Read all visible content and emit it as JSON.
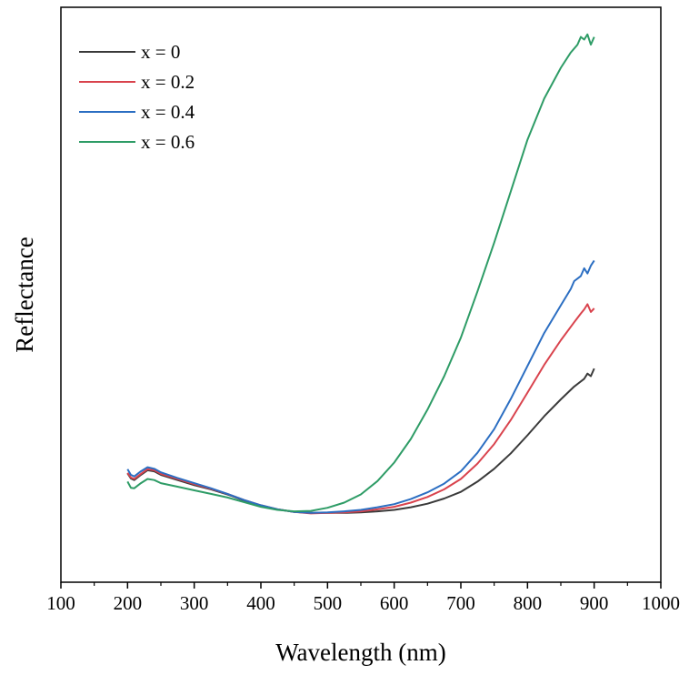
{
  "chart_data": {
    "type": "line",
    "title": "",
    "xlabel": "Wavelength (nm)",
    "ylabel": "Reflectance",
    "xlim": [
      100,
      1000
    ],
    "ylim": [
      0,
      1
    ],
    "xticks": [
      "100",
      "200",
      "300",
      "400",
      "500",
      "600",
      "700",
      "800",
      "900",
      "1000"
    ],
    "yticks_labeled": false,
    "grid": false,
    "legend_position": "top-left",
    "series": [
      {
        "name": "x = 0",
        "color": "#3a3a3a",
        "x": [
          200,
          205,
          210,
          220,
          230,
          240,
          250,
          275,
          300,
          325,
          350,
          375,
          400,
          425,
          450,
          475,
          500,
          525,
          550,
          575,
          600,
          625,
          650,
          675,
          700,
          725,
          750,
          775,
          800,
          825,
          850,
          870,
          885,
          890,
          895,
          900
        ],
        "y": [
          0.141,
          0.131,
          0.128,
          0.138,
          0.147,
          0.145,
          0.138,
          0.128,
          0.118,
          0.11,
          0.1,
          0.088,
          0.078,
          0.071,
          0.066,
          0.064,
          0.064,
          0.064,
          0.065,
          0.067,
          0.07,
          0.075,
          0.082,
          0.092,
          0.105,
          0.125,
          0.15,
          0.18,
          0.215,
          0.252,
          0.285,
          0.31,
          0.325,
          0.335,
          0.33,
          0.345
        ]
      },
      {
        "name": "x = 0.2",
        "color": "#d9434d",
        "x": [
          200,
          205,
          210,
          220,
          230,
          240,
          250,
          275,
          300,
          325,
          350,
          375,
          400,
          425,
          450,
          475,
          500,
          525,
          550,
          575,
          600,
          625,
          650,
          675,
          700,
          725,
          750,
          775,
          800,
          825,
          850,
          870,
          880,
          885,
          890,
          895,
          900
        ],
        "y": [
          0.142,
          0.133,
          0.13,
          0.14,
          0.149,
          0.147,
          0.14,
          0.13,
          0.12,
          0.111,
          0.101,
          0.089,
          0.079,
          0.071,
          0.066,
          0.063,
          0.064,
          0.065,
          0.067,
          0.071,
          0.076,
          0.084,
          0.095,
          0.11,
          0.13,
          0.16,
          0.198,
          0.245,
          0.298,
          0.352,
          0.4,
          0.435,
          0.452,
          0.46,
          0.47,
          0.455,
          0.462
        ]
      },
      {
        "name": "x = 0.4",
        "color": "#2b6ec2",
        "x": [
          200,
          205,
          210,
          220,
          230,
          240,
          250,
          275,
          300,
          325,
          350,
          375,
          400,
          425,
          450,
          475,
          500,
          525,
          550,
          575,
          600,
          625,
          650,
          675,
          700,
          725,
          750,
          775,
          800,
          825,
          850,
          865,
          870,
          880,
          885,
          890,
          895,
          900
        ],
        "y": [
          0.149,
          0.138,
          0.135,
          0.145,
          0.153,
          0.15,
          0.143,
          0.132,
          0.122,
          0.112,
          0.101,
          0.089,
          0.079,
          0.071,
          0.066,
          0.064,
          0.065,
          0.067,
          0.07,
          0.075,
          0.081,
          0.091,
          0.104,
          0.121,
          0.145,
          0.181,
          0.227,
          0.286,
          0.35,
          0.414,
          0.468,
          0.5,
          0.515,
          0.525,
          0.54,
          0.53,
          0.545,
          0.555
        ]
      },
      {
        "name": "x = 0.6",
        "color": "#2e9c66",
        "x": [
          200,
          205,
          210,
          220,
          230,
          240,
          250,
          275,
          300,
          325,
          350,
          375,
          400,
          425,
          450,
          475,
          500,
          525,
          550,
          575,
          600,
          625,
          650,
          675,
          700,
          725,
          750,
          775,
          800,
          825,
          850,
          865,
          875,
          880,
          885,
          890,
          895,
          900
        ],
        "y": [
          0.125,
          0.113,
          0.112,
          0.122,
          0.13,
          0.128,
          0.122,
          0.115,
          0.108,
          0.101,
          0.094,
          0.085,
          0.076,
          0.07,
          0.067,
          0.068,
          0.074,
          0.084,
          0.1,
          0.126,
          0.162,
          0.208,
          0.265,
          0.33,
          0.405,
          0.495,
          0.59,
          0.69,
          0.79,
          0.87,
          0.93,
          0.96,
          0.975,
          0.99,
          0.985,
          0.995,
          0.975,
          0.99
        ]
      }
    ]
  }
}
